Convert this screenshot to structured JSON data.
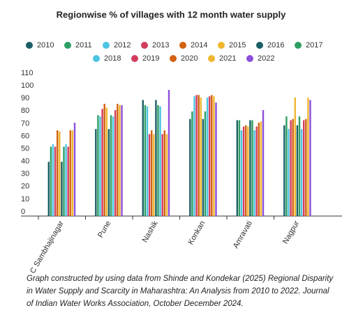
{
  "chart_data": {
    "type": "bar",
    "title": "Regionwise % of villages with 12 month water supply",
    "categories": [
      "C Sambhajinagar",
      "Pune",
      "Nashik",
      "Konkan",
      "Amravati",
      "Nagpur"
    ],
    "series": [
      {
        "name": "2010",
        "color": "#1b5f66",
        "values": [
          43,
          69,
          92,
          77,
          76,
          72
        ]
      },
      {
        "name": "2011",
        "color": "#2e9e63",
        "values": [
          55,
          80,
          88,
          83,
          76,
          79
        ]
      },
      {
        "name": "2012",
        "color": "#4cc4e2",
        "values": [
          57,
          79,
          87,
          95,
          68,
          69
        ]
      },
      {
        "name": "2013",
        "color": "#d23d5e",
        "values": [
          55,
          85,
          65,
          96,
          71,
          76
        ]
      },
      {
        "name": "2014",
        "color": "#d2620e",
        "values": [
          68,
          89,
          68,
          96,
          72,
          77
        ]
      },
      {
        "name": "2015",
        "color": "#f0b62e",
        "values": [
          67,
          86,
          65,
          94,
          71,
          94
        ]
      },
      {
        "name": "2016",
        "color": "#1b5f66",
        "values": [
          43,
          69,
          92,
          77,
          76,
          72
        ]
      },
      {
        "name": "2017",
        "color": "#2e9e63",
        "values": [
          55,
          80,
          88,
          83,
          76,
          79
        ]
      },
      {
        "name": "2018",
        "color": "#4cc4e2",
        "values": [
          57,
          79,
          87,
          94,
          68,
          69
        ]
      },
      {
        "name": "2019",
        "color": "#d23d5e",
        "values": [
          55,
          84,
          65,
          95,
          71,
          76
        ]
      },
      {
        "name": "2020",
        "color": "#d2620e",
        "values": [
          68,
          89,
          68,
          96,
          74,
          77
        ]
      },
      {
        "name": "2021",
        "color": "#f0b62e",
        "values": [
          68,
          88,
          65,
          95,
          75,
          94
        ]
      },
      {
        "name": "2022",
        "color": "#8c4fdc",
        "values": [
          74,
          88,
          100,
          90,
          84,
          92
        ]
      }
    ],
    "ylim": [
      0,
      110
    ],
    "yticks": [
      0,
      10,
      20,
      30,
      40,
      50,
      60,
      70,
      80,
      90,
      100,
      110
    ],
    "grid": false,
    "caption": [
      "Graph constructed by using data from Shinde and Kondekar (2025) Regional Disparity",
      "in Water Supply and Scarcity in Maharashtra: An Analysis from 2010 to 2022. Journal",
      "of Indian Water Works Association, October December 2024."
    ]
  }
}
